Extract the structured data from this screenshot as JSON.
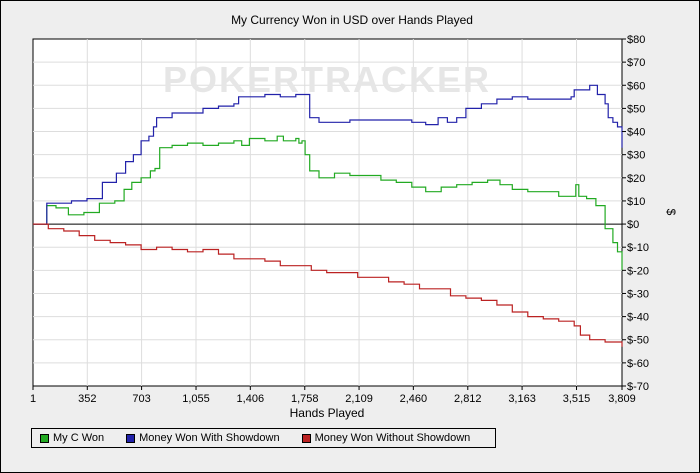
{
  "chart_data": {
    "type": "line",
    "title": "My Currency Won in USD over Hands Played",
    "xlabel": "Hands Played",
    "ylabel": "$",
    "xlim": [
      1,
      3809
    ],
    "ylim": [
      -70,
      80
    ],
    "x_ticks": [
      "1",
      "352",
      "703",
      "1,055",
      "1,406",
      "1,758",
      "2,109",
      "2,460",
      "2,812",
      "3,163",
      "3,515",
      "3,809"
    ],
    "x_tick_values": [
      1,
      352,
      703,
      1055,
      1406,
      1758,
      2109,
      2460,
      2812,
      3163,
      3515,
      3809
    ],
    "y_ticks": [
      "$80",
      "$70",
      "$60",
      "$50",
      "$40",
      "$30",
      "$20",
      "$10",
      "$0",
      "$-10",
      "$-20",
      "$-30",
      "$-40",
      "$-50",
      "$-60",
      "$-70"
    ],
    "y_tick_values": [
      80,
      70,
      60,
      50,
      40,
      30,
      20,
      10,
      0,
      -10,
      -20,
      -30,
      -40,
      -50,
      -60,
      -70
    ],
    "grid": true,
    "watermark": "POKERTRACKER",
    "legend_position": "bottom-left",
    "series": [
      {
        "name": "My C Won",
        "color": "#22aa22",
        "points": [
          [
            1,
            0
          ],
          [
            40,
            0
          ],
          [
            90,
            8
          ],
          [
            150,
            7
          ],
          [
            230,
            4
          ],
          [
            330,
            5
          ],
          [
            430,
            9
          ],
          [
            530,
            10
          ],
          [
            590,
            15
          ],
          [
            640,
            18
          ],
          [
            700,
            20
          ],
          [
            760,
            23
          ],
          [
            790,
            24
          ],
          [
            820,
            33
          ],
          [
            900,
            34
          ],
          [
            1000,
            35
          ],
          [
            1100,
            34
          ],
          [
            1200,
            35
          ],
          [
            1300,
            36
          ],
          [
            1350,
            34
          ],
          [
            1400,
            37
          ],
          [
            1500,
            36
          ],
          [
            1580,
            38
          ],
          [
            1620,
            36
          ],
          [
            1700,
            37
          ],
          [
            1720,
            35
          ],
          [
            1740,
            36
          ],
          [
            1760,
            30
          ],
          [
            1790,
            23
          ],
          [
            1850,
            20
          ],
          [
            1950,
            22
          ],
          [
            2050,
            21
          ],
          [
            2150,
            21
          ],
          [
            2250,
            19
          ],
          [
            2350,
            18
          ],
          [
            2450,
            16
          ],
          [
            2540,
            14
          ],
          [
            2640,
            16
          ],
          [
            2740,
            17
          ],
          [
            2840,
            18
          ],
          [
            2940,
            19
          ],
          [
            3020,
            17
          ],
          [
            3100,
            15
          ],
          [
            3200,
            14
          ],
          [
            3300,
            14
          ],
          [
            3400,
            12
          ],
          [
            3480,
            12
          ],
          [
            3510,
            17
          ],
          [
            3530,
            12
          ],
          [
            3580,
            11
          ],
          [
            3640,
            8
          ],
          [
            3700,
            -2
          ],
          [
            3750,
            -8
          ],
          [
            3780,
            -12
          ],
          [
            3809,
            -20
          ]
        ]
      },
      {
        "name": "Money Won With Showdown",
        "color": "#2222aa",
        "points": [
          [
            1,
            0
          ],
          [
            60,
            0
          ],
          [
            90,
            9
          ],
          [
            150,
            9
          ],
          [
            250,
            10
          ],
          [
            350,
            11
          ],
          [
            450,
            18
          ],
          [
            540,
            22
          ],
          [
            600,
            27
          ],
          [
            650,
            30
          ],
          [
            700,
            36
          ],
          [
            750,
            38
          ],
          [
            780,
            42
          ],
          [
            800,
            46
          ],
          [
            900,
            48
          ],
          [
            1000,
            48
          ],
          [
            1100,
            50
          ],
          [
            1200,
            51
          ],
          [
            1300,
            52
          ],
          [
            1330,
            55
          ],
          [
            1400,
            55
          ],
          [
            1500,
            56
          ],
          [
            1600,
            55
          ],
          [
            1700,
            56
          ],
          [
            1750,
            56
          ],
          [
            1790,
            46
          ],
          [
            1850,
            44
          ],
          [
            1950,
            44
          ],
          [
            2050,
            45
          ],
          [
            2150,
            45
          ],
          [
            2250,
            45
          ],
          [
            2350,
            45
          ],
          [
            2450,
            44
          ],
          [
            2540,
            43
          ],
          [
            2620,
            46
          ],
          [
            2680,
            44
          ],
          [
            2740,
            46
          ],
          [
            2800,
            50
          ],
          [
            2900,
            52
          ],
          [
            3000,
            54
          ],
          [
            3100,
            55
          ],
          [
            3200,
            54
          ],
          [
            3300,
            54
          ],
          [
            3400,
            54
          ],
          [
            3480,
            55
          ],
          [
            3500,
            58
          ],
          [
            3600,
            60
          ],
          [
            3650,
            56
          ],
          [
            3700,
            52
          ],
          [
            3720,
            46
          ],
          [
            3750,
            44
          ],
          [
            3780,
            42
          ],
          [
            3809,
            33
          ]
        ]
      },
      {
        "name": "Money Won Without Showdown",
        "color": "#bb2222",
        "points": [
          [
            1,
            0
          ],
          [
            100,
            -2
          ],
          [
            200,
            -3
          ],
          [
            300,
            -5
          ],
          [
            400,
            -7
          ],
          [
            500,
            -8
          ],
          [
            600,
            -9
          ],
          [
            700,
            -11
          ],
          [
            800,
            -10
          ],
          [
            900,
            -11
          ],
          [
            1000,
            -12
          ],
          [
            1100,
            -11
          ],
          [
            1200,
            -13
          ],
          [
            1300,
            -15
          ],
          [
            1400,
            -15
          ],
          [
            1500,
            -16
          ],
          [
            1600,
            -18
          ],
          [
            1700,
            -18
          ],
          [
            1800,
            -20
          ],
          [
            1900,
            -21
          ],
          [
            2000,
            -21
          ],
          [
            2100,
            -23
          ],
          [
            2200,
            -23
          ],
          [
            2300,
            -25
          ],
          [
            2400,
            -26
          ],
          [
            2500,
            -28
          ],
          [
            2600,
            -28
          ],
          [
            2700,
            -31
          ],
          [
            2800,
            -32
          ],
          [
            2900,
            -33
          ],
          [
            3000,
            -35
          ],
          [
            3100,
            -38
          ],
          [
            3200,
            -40
          ],
          [
            3300,
            -41
          ],
          [
            3400,
            -42
          ],
          [
            3500,
            -44
          ],
          [
            3540,
            -48
          ],
          [
            3600,
            -50
          ],
          [
            3700,
            -51
          ],
          [
            3809,
            -53
          ]
        ]
      }
    ]
  }
}
